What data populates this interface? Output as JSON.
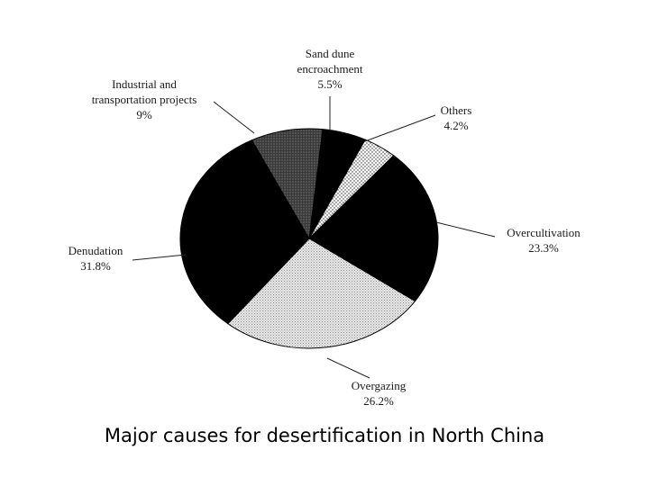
{
  "chart_data": {
    "type": "pie",
    "title": "Major causes for desertification in North China",
    "slices": [
      {
        "name_lines": [
          "Sand dune",
          "encroachment"
        ],
        "value_label": "5.5%",
        "value": 5.5,
        "fill": "black"
      },
      {
        "name_lines": [
          "Others"
        ],
        "value_label": "4.2%",
        "value": 4.2,
        "fill": "light-dots"
      },
      {
        "name_lines": [
          "Overcultivation"
        ],
        "value_label": "23.3%",
        "value": 23.3,
        "fill": "black"
      },
      {
        "name_lines": [
          "Overgazing"
        ],
        "value_label": "26.2%",
        "value": 26.2,
        "fill": "light-gray-dots"
      },
      {
        "name_lines": [
          "Denudation"
        ],
        "value_label": "31.8%",
        "value": 31.8,
        "fill": "black"
      },
      {
        "name_lines": [
          "Industrial and",
          "transportation projects"
        ],
        "value_label": "9%",
        "value": 9,
        "fill": "dark-gray-dots"
      }
    ]
  },
  "colors": {
    "ink": "#000000",
    "light_dots_bg": "#ffffff",
    "gray_dots_bg": "#e6e6e6",
    "dark_dots_bg": "#4a4a4a"
  }
}
